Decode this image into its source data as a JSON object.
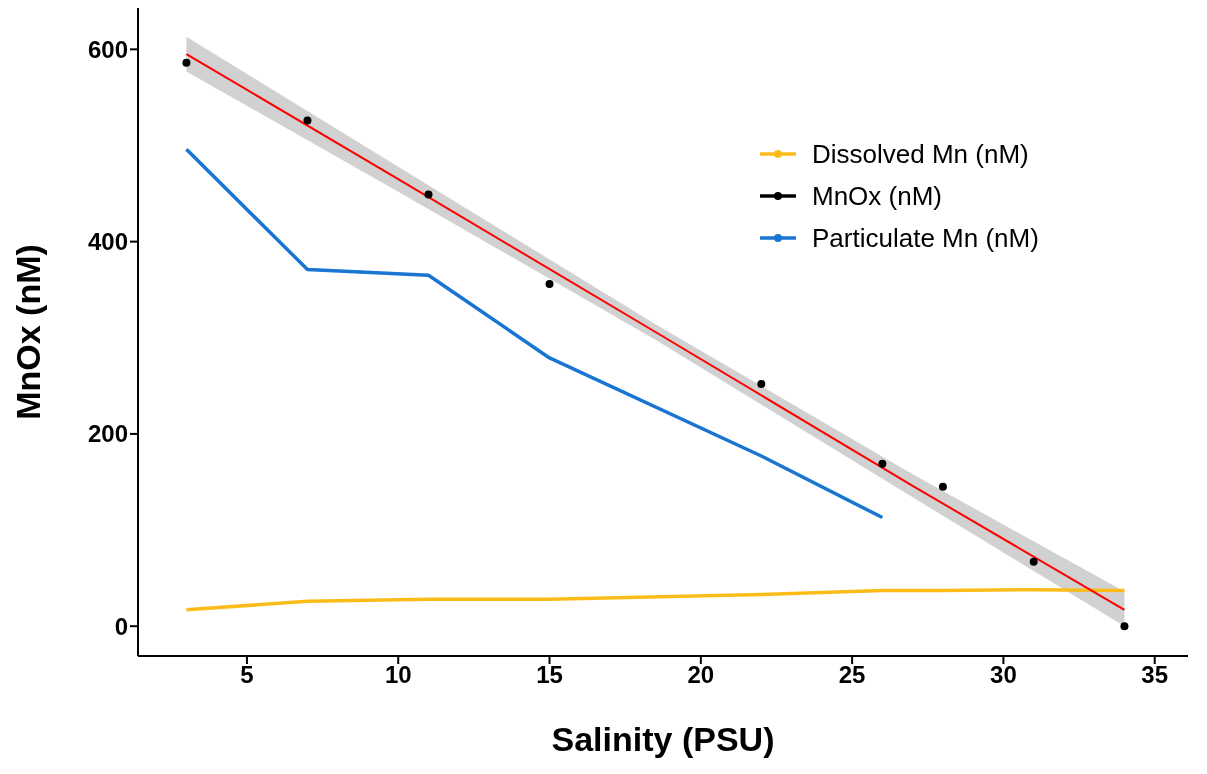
{
  "chart_data": {
    "type": "line",
    "xlabel": "Salinity (PSU)",
    "ylabel": "MnOx (nM)",
    "xlim": [
      1.4,
      36.1
    ],
    "xticks": [
      5,
      10,
      15,
      20,
      25,
      30,
      35
    ],
    "ylim": [
      -31,
      643
    ],
    "yticks": [
      0,
      200,
      400,
      600
    ],
    "legend": "top right",
    "marker": "none",
    "series": [
      {
        "name": "Dissolved Mn (nM)",
        "color": "#fbbc1a",
        "x": [
          3,
          7,
          11,
          15,
          22,
          26,
          28,
          31,
          34
        ],
        "values": [
          17,
          26,
          28,
          28,
          33,
          37,
          37,
          38,
          37
        ]
      },
      {
        "name": "MnOx (nM)",
        "color": "#000000",
        "type": "scatter",
        "marker": "circle",
        "x": [
          3,
          7,
          11,
          15,
          22,
          26,
          28,
          31,
          34
        ],
        "values": [
          586,
          526,
          449,
          356,
          252,
          169,
          145,
          67,
          0
        ]
      },
      {
        "name": "Particulate Mn (nM)",
        "color": "#1a75d2",
        "x": [
          3,
          7,
          11,
          15,
          22,
          26
        ],
        "values": [
          496,
          371,
          365,
          279,
          177,
          113
        ]
      },
      {
        "color": "#ff0000",
        "x": [
          3,
          10,
          18.5,
          27,
          34
        ],
        "values": [
          595,
          465,
          306,
          146,
          17
        ],
        "lower": [
          577,
          452,
          298,
          134,
          0
        ],
        "upper": [
          613,
          478,
          314,
          158,
          36
        ]
      }
    ]
  }
}
